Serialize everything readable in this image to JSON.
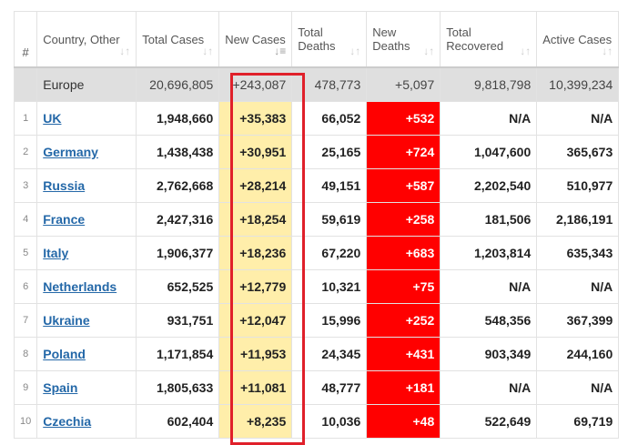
{
  "headers": [
    {
      "label": "#"
    },
    {
      "label": "Country, Other"
    },
    {
      "label": "Total Cases"
    },
    {
      "label": "New Cases"
    },
    {
      "label": "Total Deaths"
    },
    {
      "label": "New Deaths"
    },
    {
      "label": "Total Recovered"
    },
    {
      "label": "Active Cases"
    }
  ],
  "total": {
    "country": "Europe",
    "total_cases": "20,696,805",
    "new_cases": "+243,087",
    "total_deaths": "478,773",
    "new_deaths": "+5,097",
    "total_recovered": "9,818,798",
    "active_cases": "10,399,234"
  },
  "rows": [
    {
      "n": "1",
      "country": "UK",
      "total_cases": "1,948,660",
      "new_cases": "+35,383",
      "total_deaths": "66,052",
      "new_deaths": "+532",
      "total_recovered": "N/A",
      "active_cases": "N/A"
    },
    {
      "n": "2",
      "country": "Germany",
      "total_cases": "1,438,438",
      "new_cases": "+30,951",
      "total_deaths": "25,165",
      "new_deaths": "+724",
      "total_recovered": "1,047,600",
      "active_cases": "365,673"
    },
    {
      "n": "3",
      "country": "Russia",
      "total_cases": "2,762,668",
      "new_cases": "+28,214",
      "total_deaths": "49,151",
      "new_deaths": "+587",
      "total_recovered": "2,202,540",
      "active_cases": "510,977"
    },
    {
      "n": "4",
      "country": "France",
      "total_cases": "2,427,316",
      "new_cases": "+18,254",
      "total_deaths": "59,619",
      "new_deaths": "+258",
      "total_recovered": "181,506",
      "active_cases": "2,186,191"
    },
    {
      "n": "5",
      "country": "Italy",
      "total_cases": "1,906,377",
      "new_cases": "+18,236",
      "total_deaths": "67,220",
      "new_deaths": "+683",
      "total_recovered": "1,203,814",
      "active_cases": "635,343"
    },
    {
      "n": "6",
      "country": "Netherlands",
      "total_cases": "652,525",
      "new_cases": "+12,779",
      "total_deaths": "10,321",
      "new_deaths": "+75",
      "total_recovered": "N/A",
      "active_cases": "N/A"
    },
    {
      "n": "7",
      "country": "Ukraine",
      "total_cases": "931,751",
      "new_cases": "+12,047",
      "total_deaths": "15,996",
      "new_deaths": "+252",
      "total_recovered": "548,356",
      "active_cases": "367,399"
    },
    {
      "n": "8",
      "country": "Poland",
      "total_cases": "1,171,854",
      "new_cases": "+11,953",
      "total_deaths": "24,345",
      "new_deaths": "+431",
      "total_recovered": "903,349",
      "active_cases": "244,160"
    },
    {
      "n": "9",
      "country": "Spain",
      "total_cases": "1,805,633",
      "new_cases": "+11,081",
      "total_deaths": "48,777",
      "new_deaths": "+181",
      "total_recovered": "N/A",
      "active_cases": "N/A"
    },
    {
      "n": "10",
      "country": "Czechia",
      "total_cases": "602,404",
      "new_cases": "+8,235",
      "total_deaths": "10,036",
      "new_deaths": "+48",
      "total_recovered": "522,649",
      "active_cases": "69,719"
    }
  ]
}
